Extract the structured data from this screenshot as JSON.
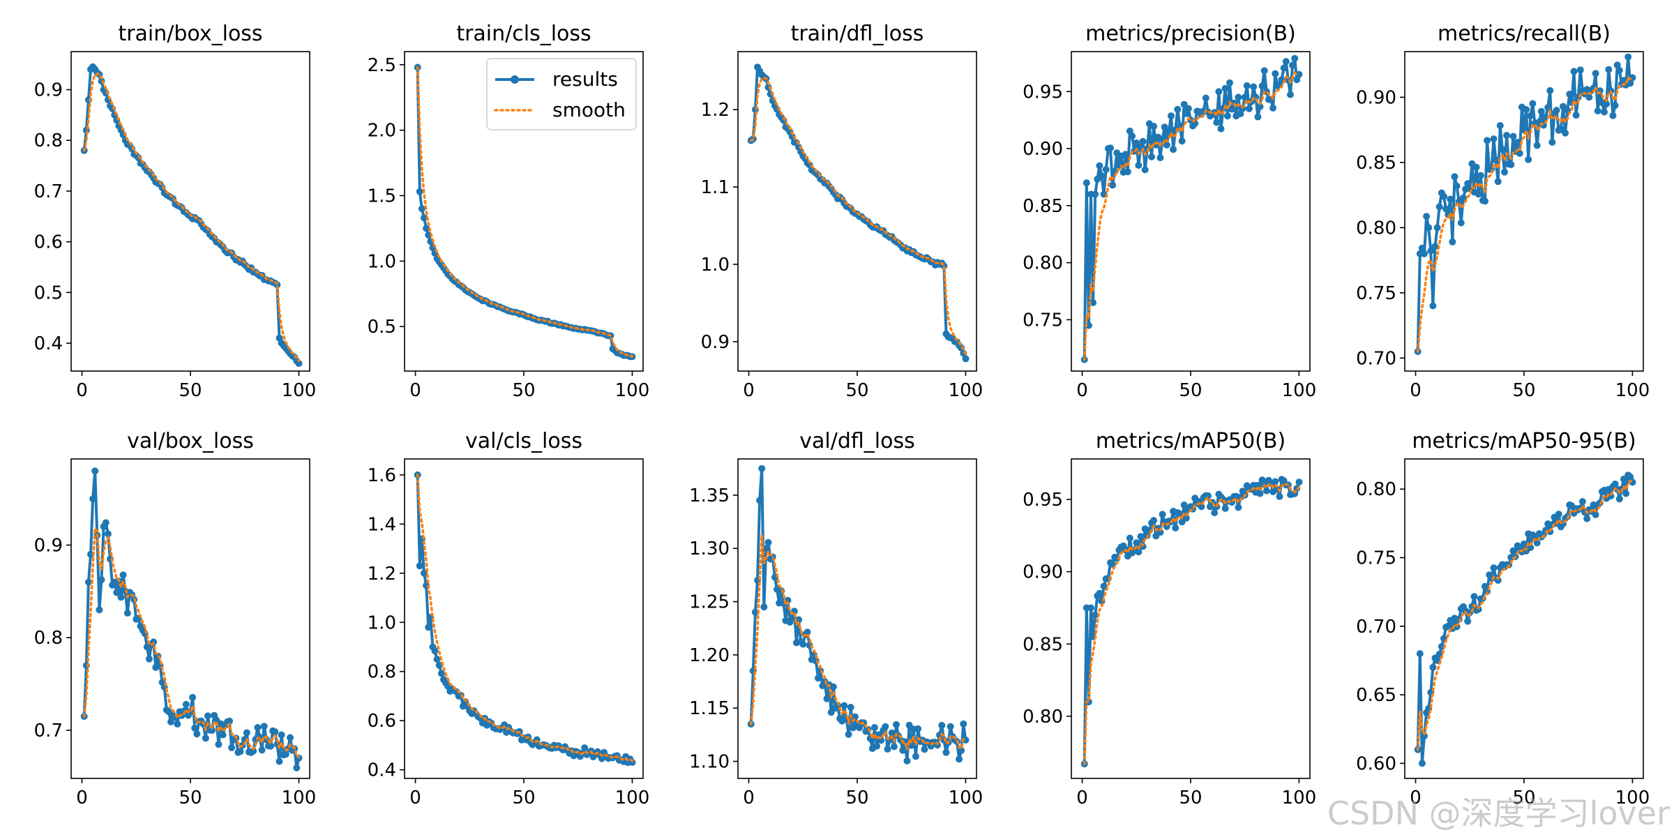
{
  "chart_data": [
    {
      "type": "line",
      "title": "train/box_loss",
      "xlim": [
        -5,
        105
      ],
      "ylim": [
        0.345,
        0.975
      ],
      "xticks": [
        0,
        50,
        100
      ],
      "yticks": [
        0.4,
        0.5,
        0.6,
        0.7,
        0.8,
        0.9
      ],
      "ydecimals": 1,
      "keypoints": [
        [
          1,
          0.78
        ],
        [
          2,
          0.82
        ],
        [
          3,
          0.88
        ],
        [
          4,
          0.94
        ],
        [
          5,
          0.945
        ],
        [
          6,
          0.94
        ],
        [
          8,
          0.93
        ],
        [
          10,
          0.9
        ],
        [
          12,
          0.88
        ],
        [
          15,
          0.85
        ],
        [
          20,
          0.8
        ],
        [
          25,
          0.77
        ],
        [
          30,
          0.74
        ],
        [
          35,
          0.715
        ],
        [
          40,
          0.69
        ],
        [
          45,
          0.67
        ],
        [
          50,
          0.65
        ],
        [
          55,
          0.635
        ],
        [
          60,
          0.61
        ],
        [
          65,
          0.59
        ],
        [
          70,
          0.57
        ],
        [
          75,
          0.555
        ],
        [
          80,
          0.54
        ],
        [
          85,
          0.525
        ],
        [
          88,
          0.52
        ],
        [
          90,
          0.515
        ],
        [
          91,
          0.41
        ],
        [
          93,
          0.395
        ],
        [
          95,
          0.385
        ],
        [
          97,
          0.375
        ],
        [
          99,
          0.365
        ],
        [
          100,
          0.36
        ]
      ],
      "noise": 0.004,
      "smooth": 0.5,
      "legend": false
    },
    {
      "type": "line",
      "title": "train/cls_loss",
      "xlim": [
        -5,
        105
      ],
      "ylim": [
        0.16,
        2.6
      ],
      "xticks": [
        0,
        50,
        100
      ],
      "yticks": [
        0.5,
        1.0,
        1.5,
        2.0,
        2.5
      ],
      "ydecimals": 1,
      "keypoints": [
        [
          1,
          2.48
        ],
        [
          2,
          1.53
        ],
        [
          3,
          1.4
        ],
        [
          4,
          1.33
        ],
        [
          5,
          1.25
        ],
        [
          7,
          1.15
        ],
        [
          10,
          1.02
        ],
        [
          15,
          0.9
        ],
        [
          20,
          0.82
        ],
        [
          25,
          0.76
        ],
        [
          30,
          0.71
        ],
        [
          35,
          0.67
        ],
        [
          40,
          0.64
        ],
        [
          45,
          0.61
        ],
        [
          50,
          0.59
        ],
        [
          55,
          0.56
        ],
        [
          60,
          0.54
        ],
        [
          65,
          0.52
        ],
        [
          70,
          0.5
        ],
        [
          75,
          0.48
        ],
        [
          80,
          0.47
        ],
        [
          85,
          0.45
        ],
        [
          90,
          0.43
        ],
        [
          91,
          0.33
        ],
        [
          93,
          0.3
        ],
        [
          95,
          0.29
        ],
        [
          97,
          0.28
        ],
        [
          100,
          0.27
        ]
      ],
      "noise": 0.005,
      "smooth": 0.5,
      "legend": true
    },
    {
      "type": "line",
      "title": "train/dfl_loss",
      "xlim": [
        -5,
        105
      ],
      "ylim": [
        0.862,
        1.275
      ],
      "xticks": [
        0,
        50,
        100
      ],
      "yticks": [
        0.9,
        1.0,
        1.1,
        1.2
      ],
      "ydecimals": 1,
      "keypoints": [
        [
          1,
          1.16
        ],
        [
          2,
          1.162
        ],
        [
          3,
          1.2
        ],
        [
          4,
          1.255
        ],
        [
          5,
          1.25
        ],
        [
          6,
          1.245
        ],
        [
          8,
          1.24
        ],
        [
          10,
          1.22
        ],
        [
          12,
          1.205
        ],
        [
          15,
          1.19
        ],
        [
          20,
          1.165
        ],
        [
          25,
          1.14
        ],
        [
          30,
          1.12
        ],
        [
          35,
          1.105
        ],
        [
          40,
          1.09
        ],
        [
          45,
          1.075
        ],
        [
          50,
          1.065
        ],
        [
          55,
          1.055
        ],
        [
          60,
          1.045
        ],
        [
          65,
          1.035
        ],
        [
          70,
          1.025
        ],
        [
          75,
          1.015
        ],
        [
          80,
          1.008
        ],
        [
          85,
          1.003
        ],
        [
          88,
          1.0
        ],
        [
          90,
          0.998
        ],
        [
          91,
          0.91
        ],
        [
          93,
          0.905
        ],
        [
          95,
          0.9
        ],
        [
          97,
          0.895
        ],
        [
          99,
          0.885
        ],
        [
          100,
          0.878
        ]
      ],
      "noise": 0.003,
      "smooth": 0.5,
      "legend": false
    },
    {
      "type": "line",
      "title": "metrics/precision(B)",
      "xlim": [
        -5,
        105
      ],
      "ylim": [
        0.705,
        0.985
      ],
      "xticks": [
        0,
        50,
        100
      ],
      "yticks": [
        0.75,
        0.8,
        0.85,
        0.9,
        0.95
      ],
      "ydecimals": 2,
      "keypoints": [
        [
          1,
          0.715
        ],
        [
          2,
          0.87
        ],
        [
          3,
          0.745
        ],
        [
          4,
          0.86
        ],
        [
          5,
          0.765
        ],
        [
          6,
          0.86
        ],
        [
          8,
          0.885
        ],
        [
          10,
          0.86
        ],
        [
          12,
          0.9
        ],
        [
          15,
          0.88
        ],
        [
          20,
          0.895
        ],
        [
          25,
          0.905
        ],
        [
          30,
          0.9
        ],
        [
          35,
          0.91
        ],
        [
          40,
          0.915
        ],
        [
          45,
          0.92
        ],
        [
          50,
          0.925
        ],
        [
          55,
          0.93
        ],
        [
          60,
          0.93
        ],
        [
          65,
          0.935
        ],
        [
          70,
          0.94
        ],
        [
          75,
          0.945
        ],
        [
          80,
          0.945
        ],
        [
          85,
          0.95
        ],
        [
          90,
          0.955
        ],
        [
          95,
          0.96
        ],
        [
          100,
          0.965
        ]
      ],
      "noise": 0.02,
      "smooth": 0.75,
      "legend": false
    },
    {
      "type": "line",
      "title": "metrics/recall(B)",
      "xlim": [
        -5,
        105
      ],
      "ylim": [
        0.69,
        0.935
      ],
      "xticks": [
        0,
        50,
        100
      ],
      "yticks": [
        0.7,
        0.75,
        0.8,
        0.85,
        0.9
      ],
      "ydecimals": 2,
      "keypoints": [
        [
          1,
          0.705
        ],
        [
          2,
          0.78
        ],
        [
          4,
          0.78
        ],
        [
          6,
          0.8
        ],
        [
          8,
          0.74
        ],
        [
          10,
          0.8
        ],
        [
          15,
          0.81
        ],
        [
          20,
          0.82
        ],
        [
          25,
          0.83
        ],
        [
          30,
          0.84
        ],
        [
          35,
          0.845
        ],
        [
          40,
          0.86
        ],
        [
          45,
          0.87
        ],
        [
          50,
          0.875
        ],
        [
          55,
          0.88
        ],
        [
          60,
          0.885
        ],
        [
          65,
          0.89
        ],
        [
          70,
          0.89
        ],
        [
          75,
          0.9
        ],
        [
          80,
          0.9
        ],
        [
          85,
          0.905
        ],
        [
          90,
          0.905
        ],
        [
          95,
          0.91
        ],
        [
          100,
          0.915
        ]
      ],
      "noise": 0.025,
      "smooth": 0.75,
      "legend": false
    },
    {
      "type": "line",
      "title": "val/box_loss",
      "xlim": [
        -5,
        105
      ],
      "ylim": [
        0.648,
        0.993
      ],
      "xticks": [
        0,
        50,
        100
      ],
      "yticks": [
        0.7,
        0.8,
        0.9
      ],
      "ydecimals": 1,
      "keypoints": [
        [
          1,
          0.715
        ],
        [
          2,
          0.77
        ],
        [
          3,
          0.86
        ],
        [
          4,
          0.89
        ],
        [
          5,
          0.95
        ],
        [
          6,
          0.98
        ],
        [
          8,
          0.83
        ],
        [
          10,
          0.92
        ],
        [
          15,
          0.86
        ],
        [
          20,
          0.85
        ],
        [
          25,
          0.82
        ],
        [
          30,
          0.79
        ],
        [
          35,
          0.78
        ],
        [
          40,
          0.72
        ],
        [
          45,
          0.72
        ],
        [
          50,
          0.72
        ],
        [
          55,
          0.71
        ],
        [
          60,
          0.7
        ],
        [
          65,
          0.695
        ],
        [
          70,
          0.69
        ],
        [
          75,
          0.69
        ],
        [
          80,
          0.69
        ],
        [
          85,
          0.69
        ],
        [
          90,
          0.685
        ],
        [
          95,
          0.68
        ],
        [
          100,
          0.67
        ]
      ],
      "noise": 0.018,
      "smooth": 0.6,
      "legend": false
    },
    {
      "type": "line",
      "title": "val/cls_loss",
      "xlim": [
        -5,
        105
      ],
      "ylim": [
        0.365,
        1.665
      ],
      "xticks": [
        0,
        50,
        100
      ],
      "yticks": [
        0.4,
        0.6,
        0.8,
        1.0,
        1.2,
        1.4,
        1.6
      ],
      "ydecimals": 1,
      "keypoints": [
        [
          1,
          1.6
        ],
        [
          2,
          1.23
        ],
        [
          3,
          1.34
        ],
        [
          4,
          1.2
        ],
        [
          5,
          1.15
        ],
        [
          6,
          0.98
        ],
        [
          7,
          1.02
        ],
        [
          8,
          0.9
        ],
        [
          10,
          0.85
        ],
        [
          15,
          0.74
        ],
        [
          20,
          0.7
        ],
        [
          25,
          0.64
        ],
        [
          30,
          0.61
        ],
        [
          35,
          0.59
        ],
        [
          40,
          0.57
        ],
        [
          45,
          0.55
        ],
        [
          50,
          0.53
        ],
        [
          55,
          0.51
        ],
        [
          60,
          0.5
        ],
        [
          65,
          0.49
        ],
        [
          70,
          0.48
        ],
        [
          75,
          0.47
        ],
        [
          80,
          0.47
        ],
        [
          85,
          0.46
        ],
        [
          90,
          0.45
        ],
        [
          95,
          0.44
        ],
        [
          100,
          0.43
        ]
      ],
      "noise": 0.02,
      "smooth": 0.6,
      "legend": false
    },
    {
      "type": "line",
      "title": "val/dfl_loss",
      "xlim": [
        -5,
        105
      ],
      "ylim": [
        1.084,
        1.384
      ],
      "xticks": [
        0,
        50,
        100
      ],
      "yticks": [
        1.1,
        1.15,
        1.2,
        1.25,
        1.3,
        1.35
      ],
      "ydecimals": 2,
      "keypoints": [
        [
          1,
          1.135
        ],
        [
          2,
          1.185
        ],
        [
          3,
          1.24
        ],
        [
          4,
          1.27
        ],
        [
          5,
          1.345
        ],
        [
          6,
          1.375
        ],
        [
          7,
          1.245
        ],
        [
          8,
          1.3
        ],
        [
          10,
          1.29
        ],
        [
          15,
          1.26
        ],
        [
          20,
          1.235
        ],
        [
          25,
          1.21
        ],
        [
          30,
          1.2
        ],
        [
          35,
          1.175
        ],
        [
          40,
          1.15
        ],
        [
          45,
          1.14
        ],
        [
          50,
          1.135
        ],
        [
          55,
          1.13
        ],
        [
          60,
          1.125
        ],
        [
          65,
          1.12
        ],
        [
          70,
          1.12
        ],
        [
          75,
          1.115
        ],
        [
          80,
          1.12
        ],
        [
          85,
          1.118
        ],
        [
          90,
          1.12
        ],
        [
          95,
          1.12
        ],
        [
          100,
          1.12
        ]
      ],
      "noise": 0.018,
      "smooth": 0.6,
      "legend": false
    },
    {
      "type": "line",
      "title": "metrics/mAP50(B)",
      "xlim": [
        -5,
        105
      ],
      "ylim": [
        0.757,
        0.978
      ],
      "xticks": [
        0,
        50,
        100
      ],
      "yticks": [
        0.8,
        0.85,
        0.9,
        0.95
      ],
      "ydecimals": 2,
      "keypoints": [
        [
          1,
          0.767
        ],
        [
          2,
          0.875
        ],
        [
          3,
          0.81
        ],
        [
          4,
          0.875
        ],
        [
          5,
          0.855
        ],
        [
          6,
          0.87
        ],
        [
          8,
          0.885
        ],
        [
          10,
          0.89
        ],
        [
          15,
          0.91
        ],
        [
          20,
          0.915
        ],
        [
          25,
          0.92
        ],
        [
          30,
          0.925
        ],
        [
          35,
          0.93
        ],
        [
          40,
          0.935
        ],
        [
          45,
          0.94
        ],
        [
          50,
          0.945
        ],
        [
          55,
          0.945
        ],
        [
          60,
          0.948
        ],
        [
          65,
          0.95
        ],
        [
          70,
          0.952
        ],
        [
          75,
          0.953
        ],
        [
          80,
          0.955
        ],
        [
          85,
          0.956
        ],
        [
          90,
          0.957
        ],
        [
          95,
          0.96
        ],
        [
          100,
          0.962
        ]
      ],
      "noise": 0.008,
      "smooth": 0.6,
      "legend": false
    },
    {
      "type": "line",
      "title": "metrics/mAP50-95(B)",
      "xlim": [
        -5,
        105
      ],
      "ylim": [
        0.589,
        0.822
      ],
      "xticks": [
        0,
        50,
        100
      ],
      "yticks": [
        0.6,
        0.65,
        0.7,
        0.75,
        0.8
      ],
      "ydecimals": 2,
      "keypoints": [
        [
          1,
          0.61
        ],
        [
          2,
          0.68
        ],
        [
          3,
          0.6
        ],
        [
          4,
          0.62
        ],
        [
          6,
          0.64
        ],
        [
          8,
          0.67
        ],
        [
          10,
          0.675
        ],
        [
          15,
          0.7
        ],
        [
          20,
          0.705
        ],
        [
          25,
          0.71
        ],
        [
          30,
          0.72
        ],
        [
          35,
          0.735
        ],
        [
          40,
          0.745
        ],
        [
          45,
          0.755
        ],
        [
          50,
          0.76
        ],
        [
          55,
          0.765
        ],
        [
          60,
          0.77
        ],
        [
          65,
          0.775
        ],
        [
          70,
          0.78
        ],
        [
          75,
          0.785
        ],
        [
          80,
          0.785
        ],
        [
          85,
          0.79
        ],
        [
          90,
          0.795
        ],
        [
          95,
          0.8
        ],
        [
          100,
          0.805
        ]
      ],
      "noise": 0.008,
      "smooth": 0.6,
      "legend": false
    }
  ],
  "legend": {
    "results": "results",
    "smooth": "smooth"
  },
  "colors": {
    "results": "#1f77b4",
    "smooth": "#ff7f0e"
  },
  "watermark": "CSDN @深度学习lover"
}
